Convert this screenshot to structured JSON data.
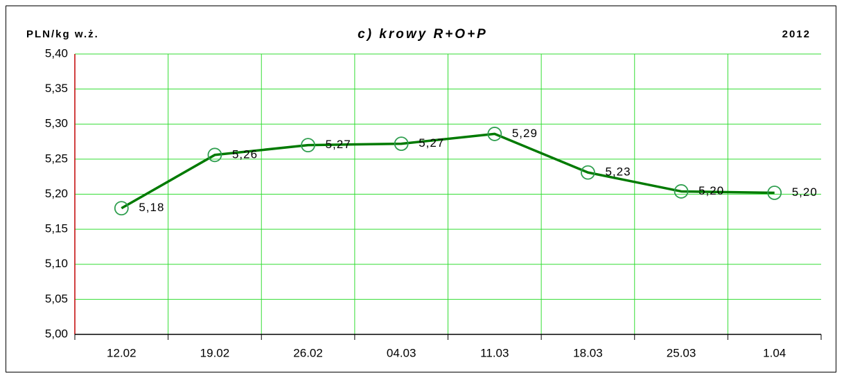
{
  "chart_data": {
    "type": "line",
    "title": "c) krowy R+O+P",
    "ylabel": "PLN/kg w.ż.",
    "annotation": "2012",
    "categories": [
      "12.02",
      "19.02",
      "26.02",
      "04.03",
      "11.03",
      "18.03",
      "25.03",
      "1.04"
    ],
    "series": [
      {
        "name": "krowy R+O+P",
        "color": "#007a00",
        "values": [
          5.18,
          5.256,
          5.27,
          5.272,
          5.286,
          5.231,
          5.204,
          5.202
        ],
        "value_labels": [
          "5,18",
          "5,26",
          "5,27",
          "5,27",
          "5,29",
          "5,23",
          "5,20",
          "5,20"
        ]
      }
    ],
    "ylim": [
      5.0,
      5.4
    ],
    "yticks": [
      {
        "value": 5.0,
        "label": "5,00"
      },
      {
        "value": 5.05,
        "label": "5,05"
      },
      {
        "value": 5.1,
        "label": "5,10"
      },
      {
        "value": 5.15,
        "label": "5,15"
      },
      {
        "value": 5.2,
        "label": "5,20"
      },
      {
        "value": 5.25,
        "label": "5,25"
      },
      {
        "value": 5.3,
        "label": "5,30"
      },
      {
        "value": 5.35,
        "label": "5,35"
      },
      {
        "value": 5.4,
        "label": "5,40"
      }
    ],
    "grid": true,
    "grid_color": "#33dd33",
    "axis_color": "#c00000"
  }
}
